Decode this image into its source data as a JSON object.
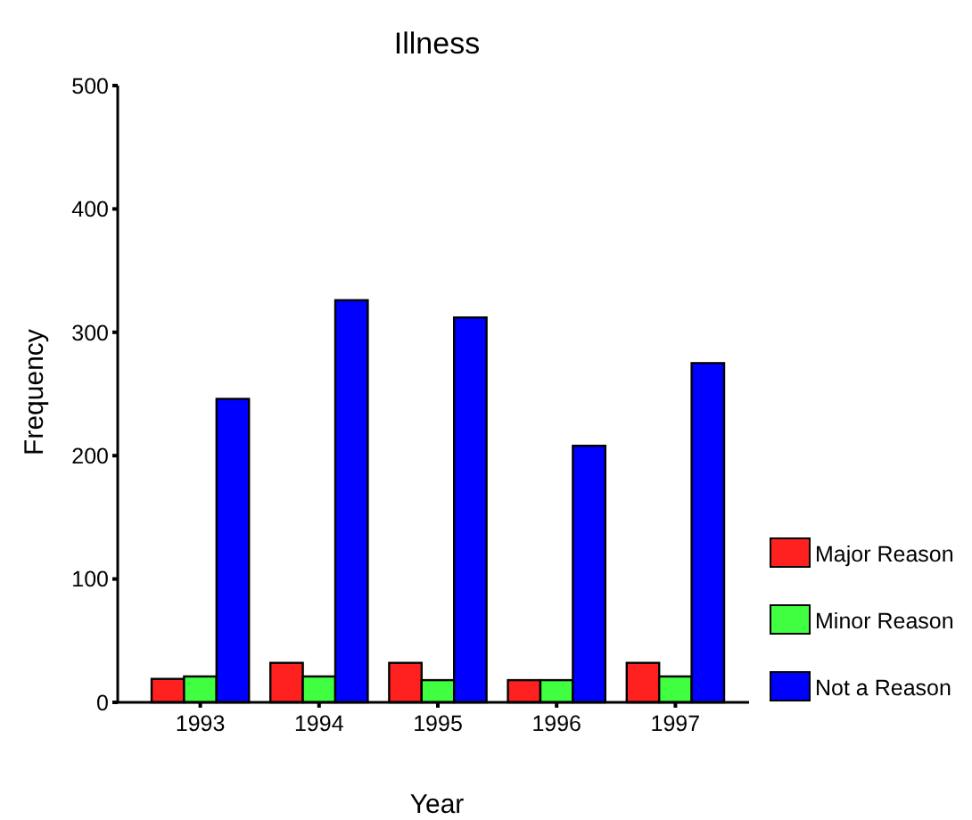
{
  "chart_data": {
    "type": "bar",
    "title": "Illness",
    "xlabel": "Year",
    "ylabel": "Frequency",
    "categories": [
      "1993",
      "1994",
      "1995",
      "1996",
      "1997"
    ],
    "series": [
      {
        "name": "Major Reason",
        "color": "#ff2020",
        "values": [
          19,
          32,
          32,
          18,
          32
        ]
      },
      {
        "name": "Minor Reason",
        "color": "#40ff40",
        "values": [
          21,
          21,
          18,
          18,
          21
        ]
      },
      {
        "name": "Not a Reason",
        "color": "#0000ff",
        "values": [
          246,
          326,
          312,
          208,
          275
        ]
      }
    ],
    "ylim": [
      0,
      500
    ],
    "yticks": [
      0,
      100,
      200,
      300,
      400,
      500
    ],
    "grid": false,
    "legend": "right"
  }
}
